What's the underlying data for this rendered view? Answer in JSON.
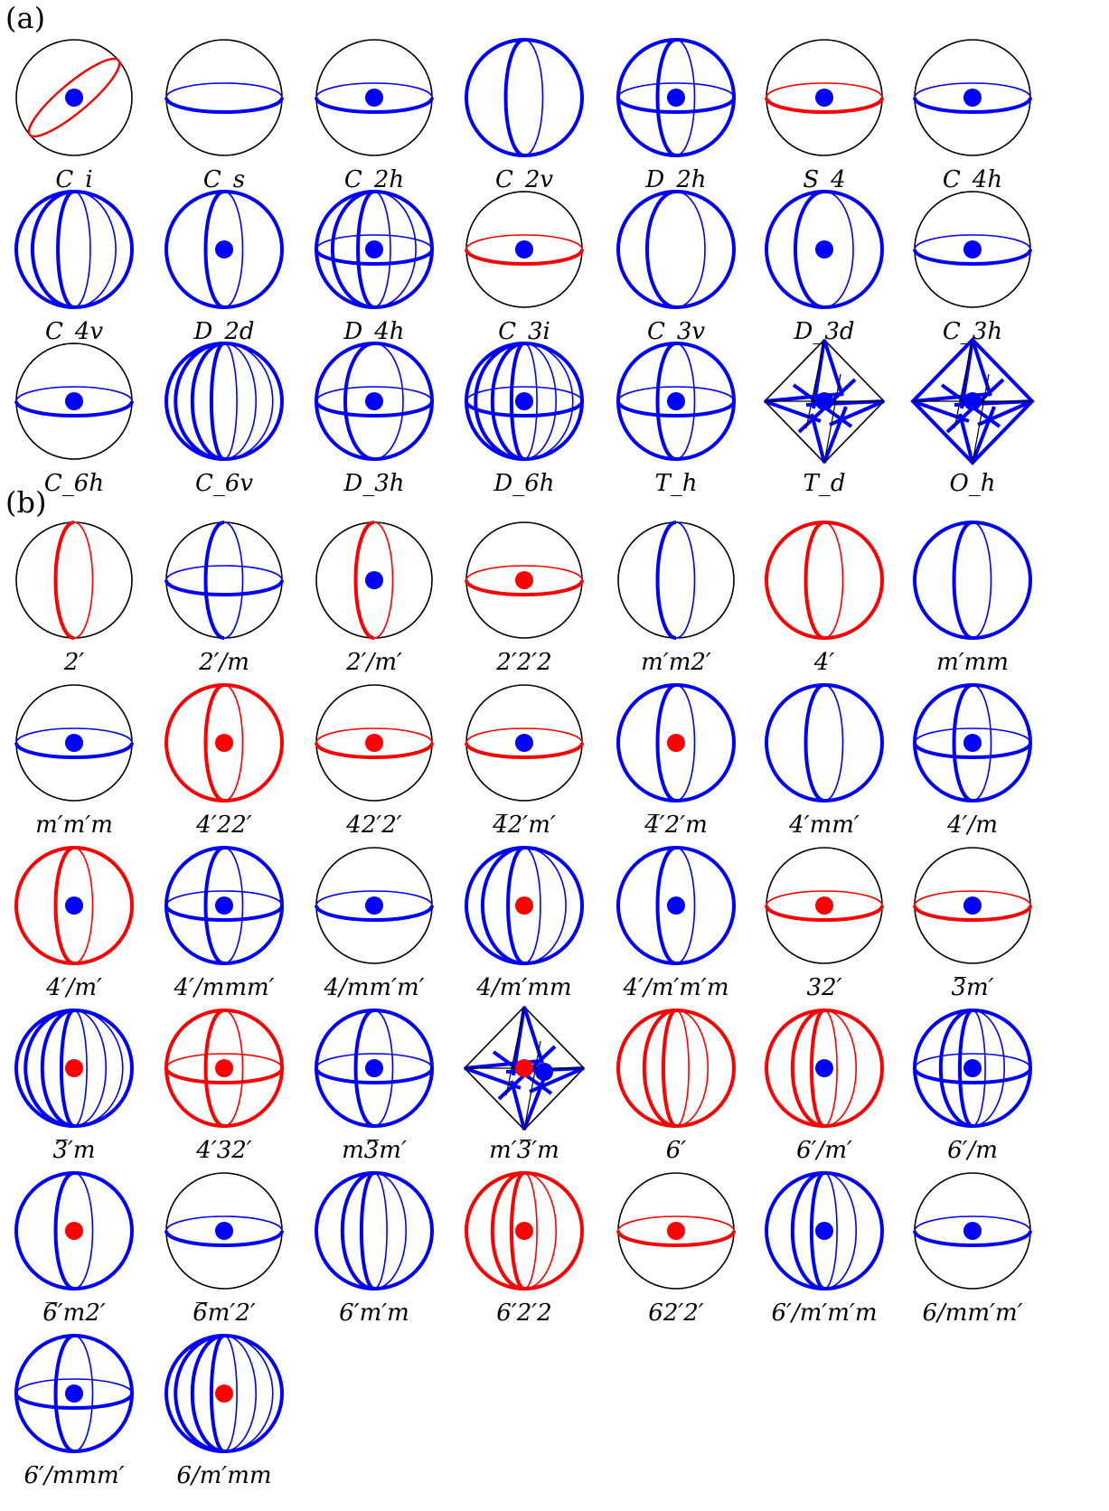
{
  "colors": {
    "outline": "#000000",
    "blue": "#0000ff",
    "red": "#ff0000"
  },
  "panel_a": {
    "label": "(a)",
    "items": [
      {
        "caption": "C_i",
        "outline": "black",
        "arcs": [
          {
            "kind": "tilt",
            "color": "red"
          }
        ],
        "dot": "blue"
      },
      {
        "caption": "C_s",
        "outline": "black",
        "arcs": [
          {
            "kind": "eq",
            "color": "blue"
          }
        ],
        "dot": ""
      },
      {
        "caption": "C_2h",
        "outline": "black",
        "arcs": [
          {
            "kind": "eq",
            "color": "blue"
          }
        ],
        "dot": "blue"
      },
      {
        "caption": "C_2v",
        "outline": "blue",
        "arcs": [
          {
            "kind": "mer",
            "w": 0.32,
            "color": "blue"
          }
        ],
        "dot": ""
      },
      {
        "caption": "D_2h",
        "outline": "blue",
        "arcs": [
          {
            "kind": "mer",
            "w": 0.32,
            "color": "blue"
          },
          {
            "kind": "eq",
            "color": "blue"
          }
        ],
        "dot": "blue"
      },
      {
        "caption": "S_4",
        "outline": "black",
        "arcs": [
          {
            "kind": "eq",
            "color": "red"
          }
        ],
        "dot": "blue"
      },
      {
        "caption": "C_4h",
        "outline": "black",
        "arcs": [
          {
            "kind": "eq",
            "color": "blue"
          }
        ],
        "dot": "blue"
      },
      {
        "caption": "C_4v",
        "outline": "blue",
        "arcs": [
          {
            "kind": "mer",
            "w": 0.72,
            "color": "blue"
          },
          {
            "kind": "mer",
            "w": 0.28,
            "color": "blue"
          }
        ],
        "dot": ""
      },
      {
        "caption": "D_2d",
        "outline": "blue",
        "arcs": [
          {
            "kind": "mer",
            "w": 0.32,
            "color": "blue"
          }
        ],
        "dot": "blue"
      },
      {
        "caption": "D_4h",
        "outline": "blue",
        "arcs": [
          {
            "kind": "mer",
            "w": 0.72,
            "color": "blue"
          },
          {
            "kind": "mer",
            "w": 0.28,
            "color": "blue"
          },
          {
            "kind": "eq",
            "color": "blue"
          }
        ],
        "dot": "blue"
      },
      {
        "caption": "C_3i",
        "outline": "black",
        "arcs": [
          {
            "kind": "eq",
            "color": "red"
          }
        ],
        "dot": "blue"
      },
      {
        "caption": "C_3v",
        "outline": "blue",
        "arcs": [
          {
            "kind": "mer",
            "w": 0.5,
            "color": "blue"
          }
        ],
        "dot": ""
      },
      {
        "caption": "D_3d",
        "outline": "blue",
        "arcs": [
          {
            "kind": "mer",
            "w": 0.5,
            "color": "blue"
          }
        ],
        "dot": "blue"
      },
      {
        "caption": "C_3h",
        "outline": "black",
        "arcs": [
          {
            "kind": "eq",
            "color": "blue"
          }
        ],
        "dot": "blue"
      },
      {
        "caption": "C_6h",
        "outline": "black",
        "arcs": [
          {
            "kind": "eq",
            "color": "blue"
          }
        ],
        "dot": "blue"
      },
      {
        "caption": "C_6v",
        "outline": "blue",
        "arcs": [
          {
            "kind": "mer",
            "w": 0.84,
            "color": "blue"
          },
          {
            "kind": "mer",
            "w": 0.55,
            "color": "blue"
          },
          {
            "kind": "mer",
            "w": 0.22,
            "color": "blue"
          }
        ],
        "dot": ""
      },
      {
        "caption": "D_3h",
        "outline": "blue",
        "arcs": [
          {
            "kind": "mer",
            "w": 0.5,
            "color": "blue"
          },
          {
            "kind": "eq",
            "color": "blue"
          }
        ],
        "dot": "blue"
      },
      {
        "caption": "D_6h",
        "outline": "blue",
        "arcs": [
          {
            "kind": "mer",
            "w": 0.84,
            "color": "blue"
          },
          {
            "kind": "mer",
            "w": 0.55,
            "color": "blue"
          },
          {
            "kind": "mer",
            "w": 0.22,
            "color": "blue"
          },
          {
            "kind": "eq",
            "color": "blue"
          }
        ],
        "dot": "blue"
      },
      {
        "caption": "T_h",
        "outline": "blue",
        "arcs": [
          {
            "kind": "mer",
            "w": 0.32,
            "color": "blue"
          },
          {
            "kind": "eq",
            "color": "blue"
          }
        ],
        "dot": "blue"
      },
      {
        "caption": "T_d",
        "outline": "octa",
        "arcs": [],
        "dot": "blue",
        "dot2": ""
      },
      {
        "caption": "O_h",
        "outline": "octa-blue",
        "arcs": [],
        "dot": "blue",
        "dot2": ""
      }
    ]
  },
  "panel_b": {
    "label": "(b)",
    "items": [
      {
        "caption": "2′",
        "outline": "black",
        "arcs": [
          {
            "kind": "mer",
            "w": 0.32,
            "color": "red"
          }
        ],
        "dot": ""
      },
      {
        "caption": "2′/m",
        "outline": "black",
        "arcs": [
          {
            "kind": "mer",
            "w": 0.32,
            "color": "blue"
          },
          {
            "kind": "eq",
            "color": "blue"
          }
        ],
        "dot": ""
      },
      {
        "caption": "2′/m′",
        "outline": "black",
        "arcs": [
          {
            "kind": "mer",
            "w": 0.32,
            "color": "red"
          }
        ],
        "dot": "blue"
      },
      {
        "caption": "2′2′2",
        "outline": "black",
        "arcs": [
          {
            "kind": "eq",
            "color": "red"
          }
        ],
        "dot": "red"
      },
      {
        "caption": "m′m2′",
        "outline": "black",
        "arcs": [
          {
            "kind": "mer",
            "w": 0.32,
            "color": "blue"
          }
        ],
        "dot": ""
      },
      {
        "caption": "4′",
        "outline": "red",
        "arcs": [
          {
            "kind": "mer",
            "w": 0.32,
            "color": "red"
          }
        ],
        "dot": ""
      },
      {
        "caption": "m′mm",
        "outline": "blue",
        "arcs": [
          {
            "kind": "mer",
            "w": 0.32,
            "color": "blue"
          }
        ],
        "dot": ""
      },
      {
        "caption": "m′m′m",
        "outline": "black",
        "arcs": [
          {
            "kind": "eq",
            "color": "blue"
          }
        ],
        "dot": "blue"
      },
      {
        "caption": "4′22′",
        "outline": "red",
        "arcs": [
          {
            "kind": "mer",
            "w": 0.32,
            "color": "red"
          }
        ],
        "dot": "red"
      },
      {
        "caption": "42′2′",
        "outline": "black",
        "arcs": [
          {
            "kind": "eq",
            "color": "red"
          }
        ],
        "dot": "red"
      },
      {
        "caption": "4̅2′m′",
        "outline": "black",
        "arcs": [
          {
            "kind": "eq",
            "color": "red"
          }
        ],
        "dot": "blue"
      },
      {
        "caption": "4̅′2′m",
        "outline": "blue",
        "arcs": [
          {
            "kind": "mer",
            "w": 0.32,
            "color": "blue"
          }
        ],
        "dot": "red"
      },
      {
        "caption": "4′mm′",
        "outline": "blue",
        "arcs": [
          {
            "kind": "mer",
            "w": 0.32,
            "color": "blue"
          }
        ],
        "dot": ""
      },
      {
        "caption": "4′/m",
        "outline": "blue",
        "arcs": [
          {
            "kind": "mer",
            "w": 0.32,
            "color": "blue"
          },
          {
            "kind": "eq",
            "color": "blue"
          }
        ],
        "dot": "blue"
      },
      {
        "caption": "4′/m′",
        "outline": "red",
        "arcs": [
          {
            "kind": "mer",
            "w": 0.32,
            "color": "red"
          }
        ],
        "dot": "blue"
      },
      {
        "caption": "4′/mmm′",
        "outline": "blue",
        "arcs": [
          {
            "kind": "mer",
            "w": 0.32,
            "color": "blue"
          },
          {
            "kind": "eq",
            "color": "blue"
          }
        ],
        "dot": "blue"
      },
      {
        "caption": "4/mm′m′",
        "outline": "black",
        "arcs": [
          {
            "kind": "eq",
            "color": "blue"
          }
        ],
        "dot": "blue"
      },
      {
        "caption": "4/m′mm",
        "outline": "blue",
        "arcs": [
          {
            "kind": "mer",
            "w": 0.72,
            "color": "blue"
          },
          {
            "kind": "mer",
            "w": 0.28,
            "color": "blue"
          }
        ],
        "dot": "red"
      },
      {
        "caption": "4′/m′m′m",
        "outline": "blue",
        "arcs": [
          {
            "kind": "mer",
            "w": 0.32,
            "color": "blue"
          }
        ],
        "dot": "blue"
      },
      {
        "caption": "32′",
        "outline": "black",
        "arcs": [
          {
            "kind": "eq",
            "color": "red"
          }
        ],
        "dot": "red"
      },
      {
        "caption": "3̅m′",
        "outline": "black",
        "arcs": [
          {
            "kind": "eq",
            "color": "red"
          }
        ],
        "dot": "blue"
      },
      {
        "caption": "3̅′m",
        "outline": "blue",
        "arcs": [
          {
            "kind": "mer",
            "w": 0.84,
            "color": "blue"
          },
          {
            "kind": "mer",
            "w": 0.55,
            "color": "blue"
          },
          {
            "kind": "mer",
            "w": 0.22,
            "color": "blue"
          }
        ],
        "dot": "red"
      },
      {
        "caption": "4′32′",
        "outline": "red",
        "arcs": [
          {
            "kind": "mer",
            "w": 0.32,
            "color": "red"
          },
          {
            "kind": "eq",
            "color": "red"
          }
        ],
        "dot": "red"
      },
      {
        "caption": "m3̅m′",
        "outline": "blue",
        "arcs": [
          {
            "kind": "mer",
            "w": 0.32,
            "color": "blue"
          },
          {
            "kind": "eq",
            "color": "blue"
          }
        ],
        "dot": "blue"
      },
      {
        "caption": "m′3̅′m",
        "outline": "octa",
        "arcs": [],
        "dot": "red",
        "dot2": "blue"
      },
      {
        "caption": "6′",
        "outline": "red",
        "arcs": [
          {
            "kind": "mer",
            "w": 0.55,
            "color": "red"
          },
          {
            "kind": "mer",
            "w": 0.22,
            "color": "red"
          }
        ],
        "dot": ""
      },
      {
        "caption": "6′/m′",
        "outline": "red",
        "arcs": [
          {
            "kind": "mer",
            "w": 0.55,
            "color": "red"
          },
          {
            "kind": "mer",
            "w": 0.22,
            "color": "red"
          }
        ],
        "dot": "blue"
      },
      {
        "caption": "6′/m",
        "outline": "blue",
        "arcs": [
          {
            "kind": "mer",
            "w": 0.55,
            "color": "blue"
          },
          {
            "kind": "mer",
            "w": 0.22,
            "color": "blue"
          },
          {
            "kind": "eq",
            "color": "blue"
          }
        ],
        "dot": "blue"
      },
      {
        "caption": "6̅′m2′",
        "outline": "blue",
        "arcs": [
          {
            "kind": "mer",
            "w": 0.32,
            "color": "blue"
          }
        ],
        "dot": "red"
      },
      {
        "caption": "6̅m′2′",
        "outline": "black",
        "arcs": [
          {
            "kind": "eq",
            "color": "blue"
          }
        ],
        "dot": "blue"
      },
      {
        "caption": "6′m′m",
        "outline": "blue",
        "arcs": [
          {
            "kind": "mer",
            "w": 0.55,
            "color": "blue"
          },
          {
            "kind": "mer",
            "w": 0.22,
            "color": "blue"
          }
        ],
        "dot": ""
      },
      {
        "caption": "6′2′2",
        "outline": "red",
        "arcs": [
          {
            "kind": "mer",
            "w": 0.55,
            "color": "red"
          },
          {
            "kind": "mer",
            "w": 0.22,
            "color": "red"
          }
        ],
        "dot": "red"
      },
      {
        "caption": "62′2′",
        "outline": "black",
        "arcs": [
          {
            "kind": "eq",
            "color": "red"
          }
        ],
        "dot": "red"
      },
      {
        "caption": "6′/m′m′m",
        "outline": "blue",
        "arcs": [
          {
            "kind": "mer",
            "w": 0.55,
            "color": "blue"
          },
          {
            "kind": "mer",
            "w": 0.22,
            "color": "blue"
          }
        ],
        "dot": "blue"
      },
      {
        "caption": "6/mm′m′",
        "outline": "black",
        "arcs": [
          {
            "kind": "eq",
            "color": "blue"
          }
        ],
        "dot": "blue"
      },
      {
        "caption": "6′/mmm′",
        "outline": "blue",
        "arcs": [
          {
            "kind": "mer",
            "w": 0.32,
            "color": "blue"
          },
          {
            "kind": "eq",
            "color": "blue"
          }
        ],
        "dot": "blue"
      },
      {
        "caption": "6/m′mm",
        "outline": "blue",
        "arcs": [
          {
            "kind": "mer",
            "w": 0.84,
            "color": "blue"
          },
          {
            "kind": "mer",
            "w": 0.55,
            "color": "blue"
          },
          {
            "kind": "mer",
            "w": 0.22,
            "color": "blue"
          }
        ],
        "dot": "red"
      }
    ]
  }
}
